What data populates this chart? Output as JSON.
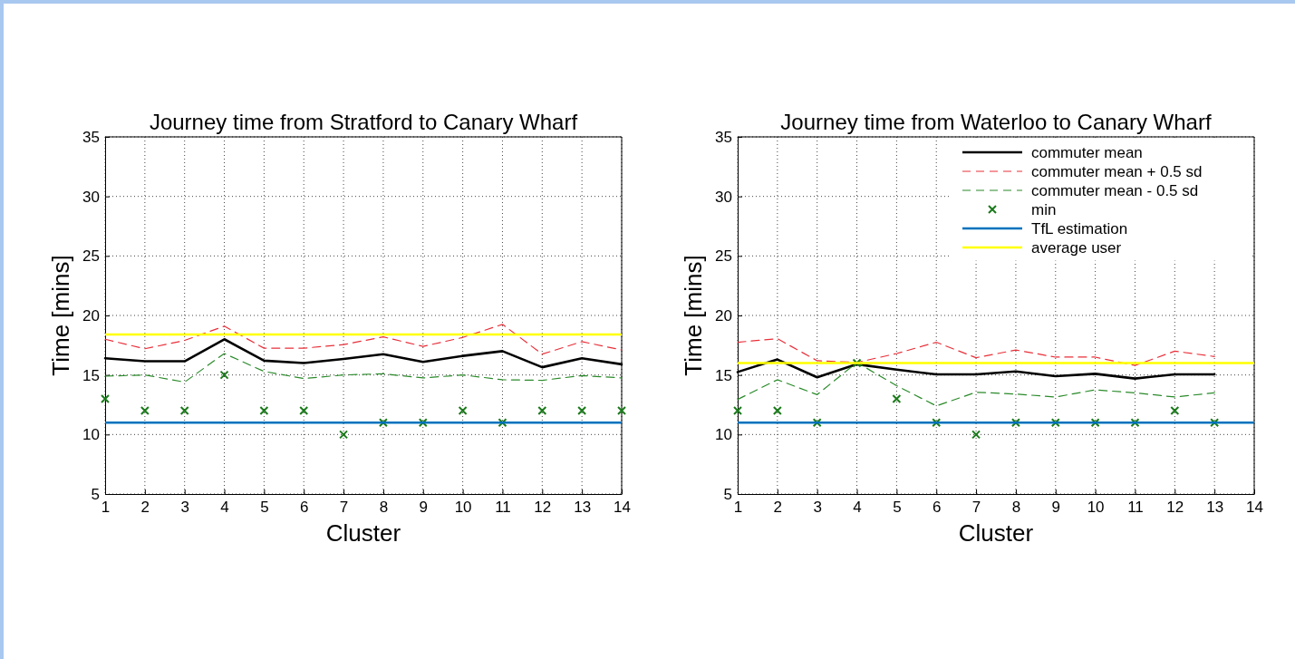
{
  "chart_data": [
    {
      "type": "line",
      "title": "Journey time from Stratford to Canary Wharf",
      "xlabel": "Cluster",
      "ylabel": "Time [mins]",
      "xlim": [
        1,
        14
      ],
      "xticks": [
        1,
        2,
        3,
        4,
        5,
        6,
        7,
        8,
        9,
        10,
        11,
        12,
        13,
        14
      ],
      "ylim": [
        5,
        35
      ],
      "yticks": [
        5,
        10,
        15,
        20,
        25,
        30,
        35
      ],
      "grid": true,
      "legend": false,
      "x": [
        1,
        2,
        3,
        4,
        5,
        6,
        7,
        8,
        9,
        10,
        11,
        12,
        13,
        14
      ],
      "series": [
        {
          "color": "#000000",
          "line_style": "solid",
          "values": [
            16.4,
            16.15,
            16.15,
            18.0,
            16.2,
            16.0,
            16.35,
            16.75,
            16.1,
            16.6,
            17.0,
            15.65,
            16.4,
            15.9
          ]
        },
        {
          "color": "#e8303a",
          "line_style": "dashed",
          "values": [
            18.0,
            17.2,
            17.9,
            19.1,
            17.25,
            17.25,
            17.55,
            18.2,
            17.4,
            18.15,
            19.25,
            16.75,
            17.8,
            17.1
          ]
        },
        {
          "color": "#2a8a2a",
          "line_style": "dashed",
          "values": [
            14.9,
            15.0,
            14.4,
            16.8,
            15.3,
            14.7,
            15.0,
            15.1,
            14.75,
            15.0,
            14.6,
            14.55,
            14.95,
            14.75
          ]
        },
        {
          "type": "scatter",
          "marker": "cross",
          "color": "#1a7a1a",
          "values": [
            13,
            12,
            12,
            15,
            12,
            12,
            10,
            11,
            11,
            12,
            11,
            12,
            12,
            12
          ]
        }
      ],
      "ref_lines": [
        {
          "axis": "y",
          "value": 11,
          "color": "#0072bd",
          "line_style": "solid"
        },
        {
          "axis": "y",
          "value": 18.4,
          "color": "#ffff00",
          "line_style": "solid"
        }
      ]
    },
    {
      "type": "line",
      "title": "Journey time from Waterloo to Canary Wharf",
      "xlabel": "Cluster",
      "ylabel": "Time [mins]",
      "xlim": [
        1,
        14
      ],
      "xticks": [
        1,
        2,
        3,
        4,
        5,
        6,
        7,
        8,
        9,
        10,
        11,
        12,
        13,
        14
      ],
      "ylim": [
        5,
        35
      ],
      "yticks": [
        5,
        10,
        15,
        20,
        25,
        30,
        35
      ],
      "grid": true,
      "legend": "top right",
      "x": [
        1,
        2,
        3,
        4,
        5,
        6,
        7,
        8,
        9,
        10,
        11,
        12,
        13
      ],
      "series": [
        {
          "name": "commuter mean",
          "color": "#000000",
          "line_style": "solid",
          "values": [
            15.25,
            16.3,
            14.8,
            15.9,
            15.45,
            15.05,
            15.05,
            15.3,
            14.9,
            15.1,
            14.7,
            15.05,
            15.05
          ]
        },
        {
          "name": "commuter mean + 0.5 sd",
          "color": "#e8303a",
          "line_style": "dashed",
          "values": [
            17.75,
            18.05,
            16.2,
            16.05,
            16.8,
            17.75,
            16.45,
            17.1,
            16.5,
            16.5,
            15.8,
            17.0,
            16.55
          ]
        },
        {
          "name": "commuter mean - 0.5 sd",
          "color": "#2a8a2a",
          "line_style": "dashed",
          "values": [
            12.95,
            14.6,
            13.35,
            16.05,
            14.1,
            12.4,
            13.55,
            13.4,
            13.15,
            13.75,
            13.5,
            13.15,
            13.5
          ]
        },
        {
          "name": "min",
          "type": "scatter",
          "marker": "cross",
          "color": "#1a7a1a",
          "values": [
            12,
            12,
            11,
            16,
            13,
            11,
            10,
            11,
            11,
            11,
            11,
            12,
            11
          ]
        }
      ],
      "ref_lines": [
        {
          "axis": "y",
          "value": 11,
          "label": "TfL estimation",
          "color": "#0072bd",
          "line_style": "solid"
        },
        {
          "axis": "y",
          "value": 16.0,
          "label": "average user",
          "color": "#ffff00",
          "line_style": "solid"
        }
      ]
    }
  ]
}
